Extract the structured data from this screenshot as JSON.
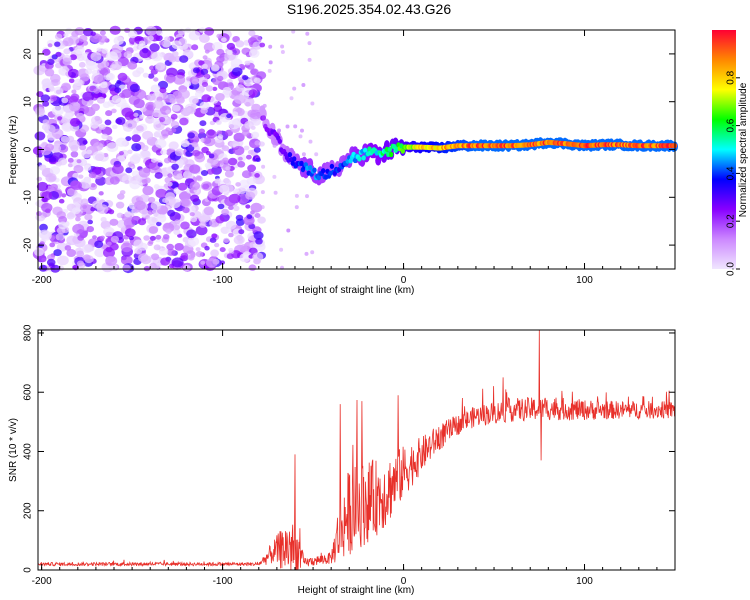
{
  "title": "S196.2025.354.02.43.G26",
  "chart_data": [
    {
      "type": "heatmap",
      "name": "spectrogram",
      "xlabel": "Height of straight line (km)",
      "ylabel": "Frequency (Hz)",
      "xlim": [
        -202,
        150
      ],
      "ylim": [
        -25,
        25
      ],
      "xticks": [
        -200,
        -100,
        0,
        100
      ],
      "yticks": [
        -20,
        -10,
        0,
        10,
        20
      ],
      "colorbar": {
        "label": "Normalized spectral amplitude",
        "range": [
          0,
          1
        ],
        "ticks": [
          "0.0",
          "0.2",
          "0.4",
          "0.6",
          "0.8"
        ],
        "colors": [
          "#f0e6ff",
          "#cc88ff",
          "#8800ff",
          "#0000ff",
          "#00ffff",
          "#00ff00",
          "#ffff00",
          "#ff8800",
          "#ff0033"
        ]
      },
      "noise_region": {
        "x": [
          -202,
          -78
        ],
        "y": [
          -25,
          25
        ],
        "amplitude": 0.15
      },
      "ridge": [
        {
          "x": -78,
          "freq": 7,
          "amp": 0.22
        },
        {
          "x": -74,
          "freq": 4,
          "amp": 0.25
        },
        {
          "x": -70,
          "freq": 2,
          "amp": 0.3
        },
        {
          "x": -66,
          "freq": -1,
          "amp": 0.3
        },
        {
          "x": -62,
          "freq": -2,
          "amp": 0.35
        },
        {
          "x": -58,
          "freq": -3,
          "amp": 0.4
        },
        {
          "x": -54,
          "freq": -4,
          "amp": 0.45
        },
        {
          "x": -50,
          "freq": -4.5,
          "amp": 0.45
        },
        {
          "x": -46,
          "freq": -5.5,
          "amp": 0.45
        },
        {
          "x": -42,
          "freq": -5,
          "amp": 0.4
        },
        {
          "x": -38,
          "freq": -4,
          "amp": 0.4
        },
        {
          "x": -34,
          "freq": -3,
          "amp": 0.4
        },
        {
          "x": -30,
          "freq": -2,
          "amp": 0.45
        },
        {
          "x": -26,
          "freq": -1.5,
          "amp": 0.5
        },
        {
          "x": -22,
          "freq": -1,
          "amp": 0.5
        },
        {
          "x": -18,
          "freq": -0.5,
          "amp": 0.55
        },
        {
          "x": -14,
          "freq": -1.5,
          "amp": 0.55
        },
        {
          "x": -10,
          "freq": -0.5,
          "amp": 0.6
        },
        {
          "x": -6,
          "freq": 0,
          "amp": 0.6
        },
        {
          "x": -2,
          "freq": 0.5,
          "amp": 0.65
        },
        {
          "x": 5,
          "freq": 0.5,
          "amp": 0.75
        },
        {
          "x": 10,
          "freq": 0.5,
          "amp": 0.8
        },
        {
          "x": 20,
          "freq": 0.3,
          "amp": 0.85
        },
        {
          "x": 30,
          "freq": 0.8,
          "amp": 0.9
        },
        {
          "x": 40,
          "freq": 0.8,
          "amp": 0.95
        },
        {
          "x": 50,
          "freq": 0.8,
          "amp": 0.95
        },
        {
          "x": 60,
          "freq": 0.8,
          "amp": 0.95
        },
        {
          "x": 70,
          "freq": 1.0,
          "amp": 0.95
        },
        {
          "x": 80,
          "freq": 1.5,
          "amp": 0.95
        },
        {
          "x": 90,
          "freq": 1.2,
          "amp": 0.95
        },
        {
          "x": 100,
          "freq": 0.8,
          "amp": 0.95
        },
        {
          "x": 110,
          "freq": 1.0,
          "amp": 0.95
        },
        {
          "x": 120,
          "freq": 1.0,
          "amp": 0.95
        },
        {
          "x": 130,
          "freq": 0.8,
          "amp": 0.95
        },
        {
          "x": 140,
          "freq": 0.8,
          "amp": 0.95
        },
        {
          "x": 150,
          "freq": 0.8,
          "amp": 0.95
        }
      ]
    },
    {
      "type": "line",
      "name": "snr",
      "xlabel": "Height of straight line (km)",
      "ylabel": "SNR (10 * v/v)",
      "xlim": [
        -202,
        150
      ],
      "ylim": [
        0,
        810
      ],
      "xticks": [
        -200,
        -100,
        0,
        100
      ],
      "yticks": [
        0,
        200,
        400,
        600,
        800
      ],
      "line_color": "#e8302a",
      "envelope": [
        {
          "x": -202,
          "mean": 20,
          "spread": 12
        },
        {
          "x": -80,
          "mean": 20,
          "spread": 12
        },
        {
          "x": -72,
          "mean": 60,
          "spread": 80
        },
        {
          "x": -63,
          "mean": 80,
          "spread": 200
        },
        {
          "x": -58,
          "mean": 60,
          "spread": 140
        },
        {
          "x": -55,
          "mean": 25,
          "spread": 30
        },
        {
          "x": -40,
          "mean": 40,
          "spread": 40
        },
        {
          "x": -36,
          "mean": 120,
          "spread": 200
        },
        {
          "x": -30,
          "mean": 200,
          "spread": 300
        },
        {
          "x": -20,
          "mean": 230,
          "spread": 280
        },
        {
          "x": -10,
          "mean": 260,
          "spread": 240
        },
        {
          "x": 0,
          "mean": 330,
          "spread": 180
        },
        {
          "x": 10,
          "mean": 390,
          "spread": 120
        },
        {
          "x": 20,
          "mean": 450,
          "spread": 90
        },
        {
          "x": 30,
          "mean": 490,
          "spread": 70
        },
        {
          "x": 40,
          "mean": 520,
          "spread": 70
        },
        {
          "x": 60,
          "mean": 540,
          "spread": 80
        },
        {
          "x": 80,
          "mean": 545,
          "spread": 80
        },
        {
          "x": 100,
          "mean": 540,
          "spread": 70
        },
        {
          "x": 120,
          "mean": 540,
          "spread": 60
        },
        {
          "x": 150,
          "mean": 540,
          "spread": 60
        }
      ],
      "spikes": [
        {
          "x": -60,
          "y": 390
        },
        {
          "x": -35,
          "y": 560
        },
        {
          "x": -23,
          "y": 570
        },
        {
          "x": -3,
          "y": 590
        },
        {
          "x": 55,
          "y": 650
        },
        {
          "x": 75,
          "y": 810
        },
        {
          "x": 76,
          "y": 370
        }
      ]
    }
  ]
}
